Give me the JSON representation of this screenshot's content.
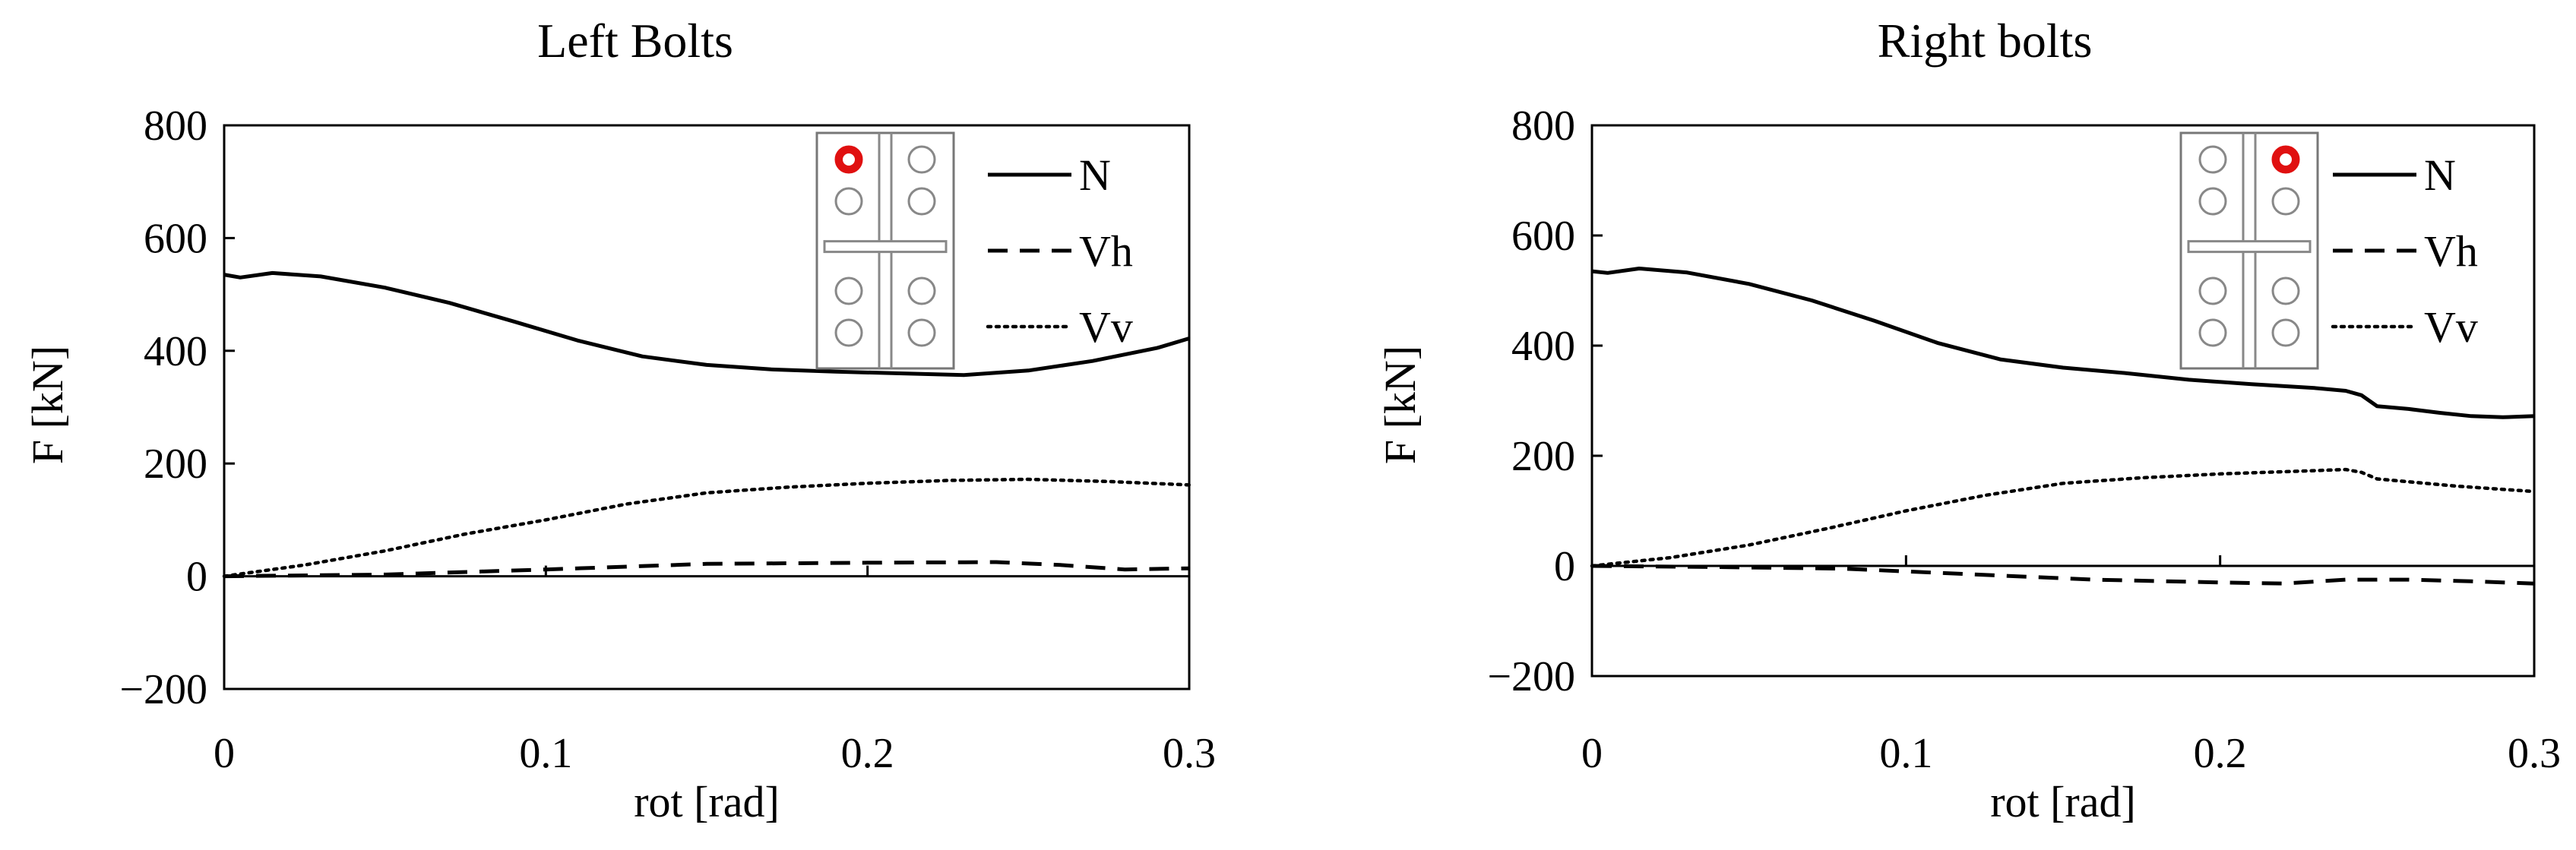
{
  "chart_data": [
    {
      "type": "line",
      "title": "Left Bolts",
      "xlabel": "rot [rad]",
      "ylabel": "F [kN]",
      "xlim": [
        0,
        0.3
      ],
      "ylim": [
        -200,
        800
      ],
      "xticks": [
        "0",
        "0.1",
        "0.2",
        "0.3"
      ],
      "yticks": [
        "800",
        "600",
        "400",
        "200",
        "0",
        "−200"
      ],
      "legend": "top-right",
      "grid": false,
      "inset": "bolt layout sketch, highlighted bolt: top-left",
      "highlight_color": "#e01010",
      "series": [
        {
          "name": "N",
          "style": "solid",
          "x": [
            0,
            0.005,
            0.015,
            0.03,
            0.05,
            0.07,
            0.09,
            0.11,
            0.13,
            0.15,
            0.17,
            0.19,
            0.21,
            0.23,
            0.25,
            0.27,
            0.29,
            0.3
          ],
          "y": [
            535,
            530,
            538,
            532,
            512,
            485,
            452,
            418,
            390,
            375,
            367,
            363,
            360,
            357,
            365,
            382,
            405,
            422
          ]
        },
        {
          "name": "Vh",
          "style": "dashed",
          "x": [
            0,
            0.05,
            0.1,
            0.15,
            0.2,
            0.24,
            0.26,
            0.28,
            0.3
          ],
          "y": [
            0,
            3,
            12,
            22,
            24,
            25,
            20,
            12,
            14
          ]
        },
        {
          "name": "Vv",
          "style": "dotted",
          "x": [
            0,
            0.025,
            0.05,
            0.075,
            0.1,
            0.125,
            0.15,
            0.175,
            0.2,
            0.225,
            0.25,
            0.275,
            0.3
          ],
          "y": [
            0,
            20,
            45,
            75,
            100,
            128,
            148,
            158,
            165,
            170,
            172,
            168,
            162
          ]
        }
      ]
    },
    {
      "type": "line",
      "title": "Right bolts",
      "xlabel": "rot [rad]",
      "ylabel": "F [kN]",
      "xlim": [
        0,
        0.3
      ],
      "ylim": [
        -200,
        800
      ],
      "xticks": [
        "0",
        "0.1",
        "0.2",
        "0.3"
      ],
      "yticks": [
        "800",
        "600",
        "400",
        "200",
        "0",
        "−200"
      ],
      "legend": "top-right",
      "grid": false,
      "inset": "bolt layout sketch, highlighted bolt: top-right",
      "highlight_color": "#e01010",
      "series": [
        {
          "name": "N",
          "style": "solid",
          "x": [
            0,
            0.005,
            0.015,
            0.03,
            0.05,
            0.07,
            0.09,
            0.11,
            0.13,
            0.15,
            0.17,
            0.19,
            0.21,
            0.23,
            0.24,
            0.245,
            0.25,
            0.26,
            0.27,
            0.28,
            0.29,
            0.3
          ],
          "y": [
            535,
            532,
            540,
            533,
            512,
            482,
            445,
            405,
            375,
            360,
            350,
            338,
            330,
            323,
            318,
            310,
            290,
            285,
            278,
            272,
            270,
            272
          ]
        },
        {
          "name": "Vh",
          "style": "dashed",
          "x": [
            0,
            0.04,
            0.08,
            0.12,
            0.16,
            0.2,
            0.22,
            0.24,
            0.26,
            0.28,
            0.3
          ],
          "y": [
            0,
            -2,
            -5,
            -15,
            -25,
            -30,
            -32,
            -25,
            -25,
            -28,
            -32
          ]
        },
        {
          "name": "Vv",
          "style": "dotted",
          "x": [
            0,
            0.025,
            0.05,
            0.075,
            0.1,
            0.125,
            0.15,
            0.175,
            0.2,
            0.225,
            0.24,
            0.245,
            0.25,
            0.275,
            0.3
          ],
          "y": [
            0,
            15,
            38,
            68,
            100,
            128,
            150,
            160,
            167,
            172,
            175,
            170,
            158,
            145,
            135
          ]
        }
      ]
    }
  ]
}
